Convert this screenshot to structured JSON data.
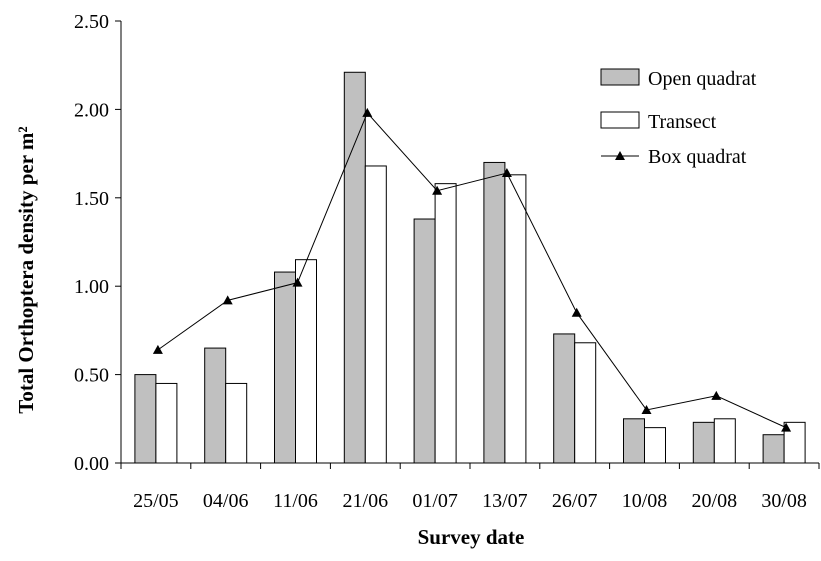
{
  "chart_data": {
    "type": "bar",
    "xlabel": "Survey date",
    "ylabel": "Total Orthoptera density per m²",
    "categories": [
      "25/05",
      "04/06",
      "11/06",
      "21/06",
      "01/07",
      "13/07",
      "26/07",
      "10/08",
      "20/08",
      "30/08"
    ],
    "ylim": [
      0,
      2.5
    ],
    "yticks": [
      "0.00",
      "0.50",
      "1.00",
      "1.50",
      "2.00",
      "2.50"
    ],
    "grid": false,
    "legend_position": "top-right",
    "series": [
      {
        "name": "Open quadrat",
        "kind": "bar",
        "color": "#c0c0c0",
        "values": [
          0.5,
          0.65,
          1.08,
          2.21,
          1.38,
          1.7,
          0.73,
          0.25,
          0.23,
          0.16
        ]
      },
      {
        "name": "Transect",
        "kind": "bar",
        "color": "#ffffff",
        "values": [
          0.45,
          0.45,
          1.15,
          1.68,
          1.58,
          1.63,
          0.68,
          0.2,
          0.25,
          0.23
        ]
      },
      {
        "name": "Box quadrat",
        "kind": "line",
        "marker": "triangle",
        "color": "#000000",
        "values": [
          0.64,
          0.92,
          1.02,
          1.98,
          1.54,
          1.64,
          0.85,
          0.3,
          0.38,
          0.2
        ]
      }
    ]
  }
}
